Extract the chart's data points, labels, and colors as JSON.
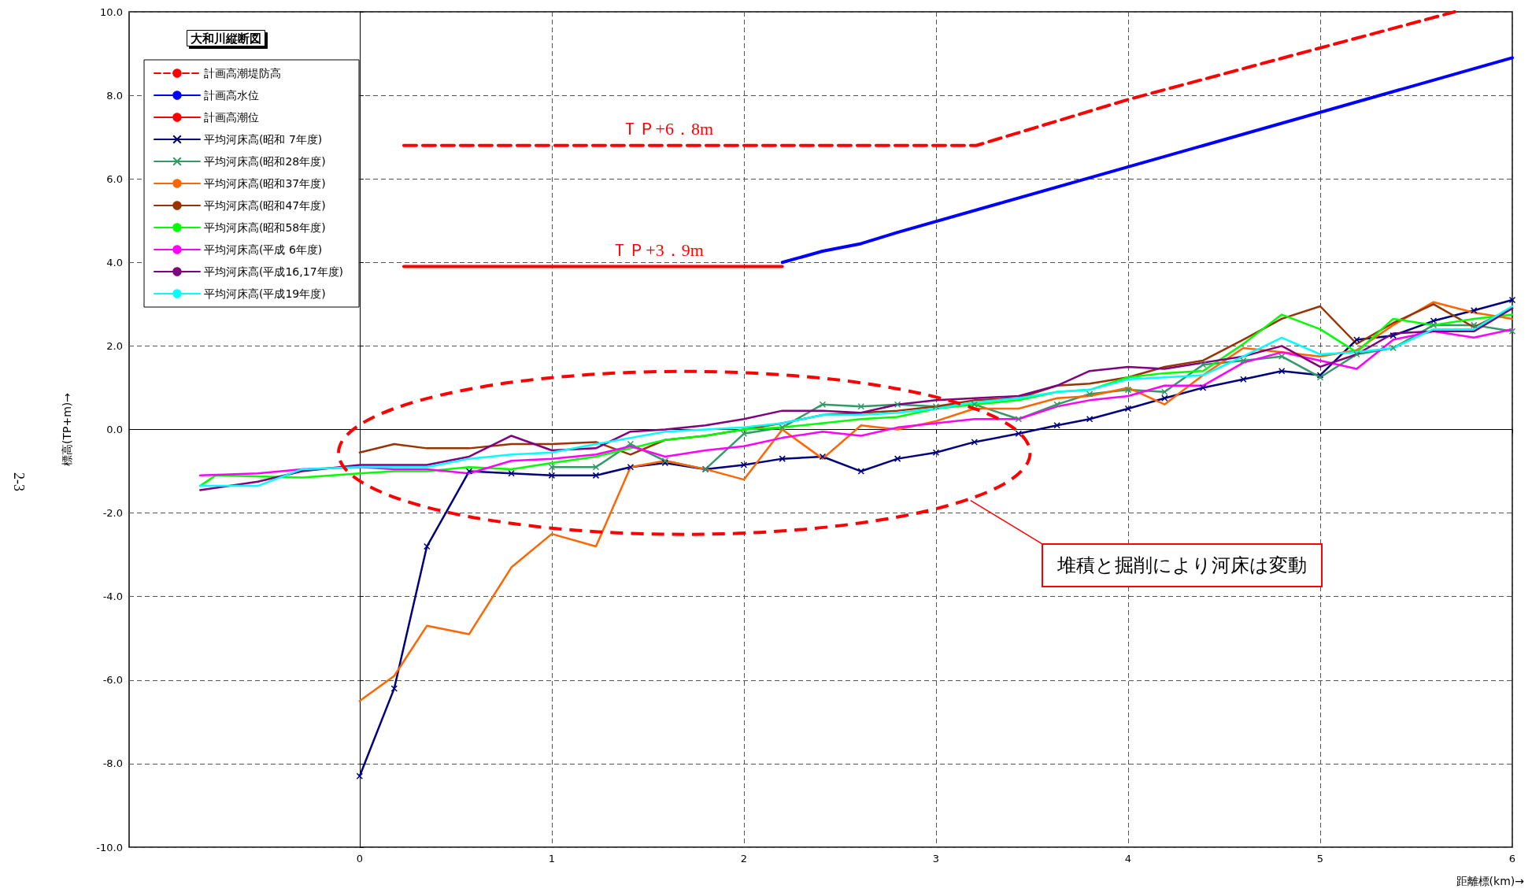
{
  "chart_data": {
    "type": "line",
    "title": "大和川縦断図",
    "xlabel": "距離標(km)→",
    "ylabel": "標高(TP+m)→",
    "x": [
      -0.83,
      -0.53,
      -0.3,
      0,
      0.18,
      0.35,
      0.57,
      0.79,
      1.0,
      1.23,
      1.41,
      1.59,
      1.8,
      2.0,
      2.2,
      2.41,
      2.61,
      2.8,
      3.0,
      3.2,
      3.43,
      3.63,
      3.8,
      4.0,
      4.19,
      4.39,
      4.6,
      4.8,
      5.0,
      5.19,
      5.38,
      5.59,
      5.8,
      6.0
    ],
    "series": [
      {
        "name": "計画高潮堤防高",
        "color": "#ff0000",
        "line_style": "dashed",
        "x": [
          0.23,
          3.21,
          4.0,
          5.7
        ],
        "values": [
          6.8,
          6.8,
          7.9,
          10.0
        ]
      },
      {
        "name": "計画高水位",
        "color": "#0000ff",
        "x": [
          2.2,
          2.41,
          2.61,
          2.8,
          6.0
        ],
        "values": [
          4.0,
          4.27,
          4.45,
          4.72,
          8.9
        ]
      },
      {
        "name": "計画高潮位",
        "color": "#ff0000",
        "x": [
          0.23,
          2.2
        ],
        "values": [
          3.9,
          3.9
        ]
      },
      {
        "name": "平均河床高(昭和 7年度)",
        "color": "#000080",
        "marker": "cross",
        "values": [
          null,
          null,
          null,
          -8.3,
          -6.2,
          -2.8,
          -1.0,
          -1.05,
          -1.1,
          -1.1,
          -0.9,
          -0.8,
          -0.95,
          -0.85,
          -0.7,
          -0.65,
          -1.0,
          -0.7,
          -0.55,
          -0.3,
          -0.1,
          0.1,
          0.25,
          0.5,
          0.75,
          1.0,
          1.2,
          1.4,
          1.3,
          2.15,
          2.25,
          2.6,
          2.85,
          3.1
        ]
      },
      {
        "name": "平均河床高(昭和28年度)",
        "color": "#339966",
        "marker": "cross",
        "values": [
          null,
          null,
          null,
          null,
          null,
          null,
          null,
          null,
          -0.9,
          -0.9,
          -0.35,
          -0.75,
          -0.95,
          -0.1,
          0.05,
          0.6,
          0.55,
          0.6,
          0.55,
          0.6,
          0.25,
          0.6,
          0.85,
          0.95,
          0.9,
          1.55,
          1.65,
          1.75,
          1.25,
          1.8,
          1.95,
          2.5,
          2.5,
          2.35
        ]
      },
      {
        "name": "平均河床高(昭和37年度)",
        "color": "#ff6600",
        "values": [
          null,
          null,
          null,
          -6.5,
          -5.9,
          -4.7,
          -4.9,
          -3.3,
          -2.5,
          -2.8,
          -0.9,
          -0.75,
          -0.95,
          -1.2,
          0.0,
          -0.7,
          0.1,
          0.0,
          0.2,
          0.5,
          0.5,
          0.75,
          0.8,
          1.0,
          0.6,
          1.3,
          1.95,
          1.85,
          1.75,
          1.9,
          2.5,
          3.05,
          2.8,
          2.65
        ]
      },
      {
        "name": "平均河床高(昭和47年度)",
        "color": "#993300",
        "values": [
          null,
          null,
          null,
          -0.55,
          -0.35,
          -0.45,
          -0.45,
          -0.35,
          -0.35,
          -0.3,
          -0.6,
          -0.25,
          -0.15,
          0.0,
          0.15,
          0.35,
          0.4,
          0.45,
          0.55,
          0.7,
          0.75,
          1.05,
          1.1,
          1.25,
          1.5,
          1.65,
          2.15,
          2.65,
          2.95,
          2.05,
          2.55,
          3.0,
          2.45,
          2.9
        ]
      },
      {
        "name": "平均河床高(昭和58年度)",
        "color": "#00ff00",
        "x": [
          -0.83,
          -0.75,
          -0.3,
          0,
          0.18,
          0.35,
          0.57,
          0.79,
          1.0,
          1.23,
          1.41,
          1.59,
          1.8,
          2.0,
          2.2,
          2.41,
          2.61,
          2.8,
          3.0,
          3.2,
          3.43,
          3.63,
          3.8,
          4.0,
          4.19,
          4.39,
          4.6,
          4.8,
          5.0,
          5.19,
          5.38,
          5.59,
          5.8,
          6.0
        ],
        "values": [
          -1.35,
          -1.1,
          -1.15,
          -1.05,
          -1.0,
          -1.0,
          -0.9,
          -0.95,
          -0.8,
          -0.65,
          -0.45,
          -0.25,
          -0.15,
          0.0,
          0.05,
          0.15,
          0.25,
          0.3,
          0.5,
          0.6,
          0.7,
          0.9,
          0.95,
          1.25,
          1.35,
          1.4,
          2.05,
          2.75,
          2.4,
          1.85,
          2.65,
          2.5,
          2.65,
          2.75
        ]
      },
      {
        "name": "平均河床高(平成 6年度)",
        "color": "#ff00ff",
        "values": [
          -1.1,
          -1.05,
          -0.95,
          -0.9,
          -0.95,
          -0.95,
          -1.05,
          -0.75,
          -0.7,
          -0.6,
          -0.4,
          -0.65,
          -0.5,
          -0.4,
          -0.2,
          -0.05,
          -0.15,
          0.05,
          0.15,
          0.25,
          0.25,
          0.55,
          0.7,
          0.8,
          1.05,
          1.05,
          1.6,
          1.85,
          1.65,
          1.45,
          2.15,
          2.35,
          2.2,
          2.4
        ]
      },
      {
        "name": "平均河床高(平成16,17年度)",
        "color": "#800080",
        "values": [
          -1.45,
          -1.25,
          -1.0,
          -0.85,
          -0.85,
          -0.85,
          -0.65,
          -0.15,
          -0.5,
          -0.45,
          -0.05,
          0.0,
          0.1,
          0.25,
          0.45,
          0.45,
          0.4,
          0.6,
          0.7,
          0.75,
          0.8,
          1.05,
          1.4,
          1.5,
          1.45,
          1.6,
          1.75,
          2.0,
          1.5,
          1.8,
          2.3,
          2.35,
          2.35,
          2.9
        ]
      },
      {
        "name": "平均河床高(平成19年度)",
        "color": "#00ffff",
        "values": [
          -1.35,
          -1.35,
          -0.95,
          -0.9,
          -0.9,
          -0.9,
          -0.7,
          -0.6,
          -0.55,
          -0.35,
          -0.2,
          -0.05,
          0.0,
          0.05,
          0.15,
          0.35,
          0.35,
          0.4,
          0.5,
          0.65,
          0.75,
          0.9,
          0.95,
          1.2,
          1.25,
          1.3,
          1.75,
          2.2,
          1.8,
          1.85,
          1.95,
          2.4,
          2.4,
          2.95
        ]
      }
    ],
    "xlim": [
      -1.2,
      6
    ],
    "xticks": [
      0,
      1,
      2,
      3,
      4,
      5,
      6
    ],
    "ylim": [
      -10,
      10
    ],
    "yticks": [
      {
        "value": -10,
        "label": "-10.0"
      },
      {
        "value": -8,
        "label": "-8.0"
      },
      {
        "value": -6,
        "label": "-6.0"
      },
      {
        "value": -4,
        "label": "-4.0"
      },
      {
        "value": -2,
        "label": "-2.0"
      },
      {
        "value": 0,
        "label": "0.0"
      },
      {
        "value": 2,
        "label": "2.0"
      },
      {
        "value": 4,
        "label": "4.0"
      },
      {
        "value": 6,
        "label": "6.0"
      },
      {
        "value": 8,
        "label": "8.0"
      },
      {
        "value": 10,
        "label": "10.0"
      }
    ],
    "grid": true,
    "legend": "top left",
    "annotations": [
      {
        "text": "ＴＰ+6．8m",
        "x": 1.6,
        "y": 6.8
      },
      {
        "text": "ＴＰ+3．9m",
        "x": 1.55,
        "y": 3.9
      },
      "堆積と掘削により河床は変動",
      "2-3"
    ]
  }
}
